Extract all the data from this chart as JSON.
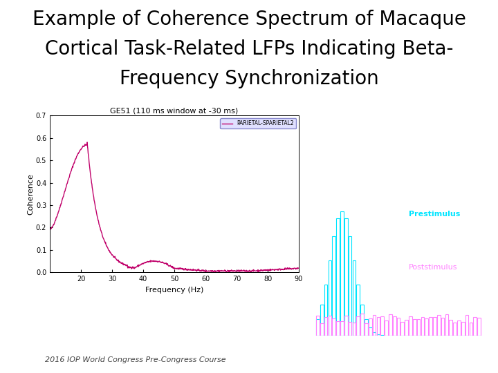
{
  "title_line1": "Example of Coherence Spectrum of Macaque",
  "title_line2": "Cortical Task-Related LFPs Indicating Beta-",
  "title_line3": "Frequency Synchronization",
  "title_fontsize": 20,
  "title_fontweight": "normal",
  "footer_text": "2016 IOP World Congress Pre-Congress Course",
  "footer_fontsize": 8,
  "plot_title": "GE51 (110 ms window at -30 ms)",
  "plot_title_fontsize": 8,
  "xlabel": "Frequency (Hz)",
  "ylabel": "Coherence",
  "xlim": [
    10,
    90
  ],
  "ylim": [
    0,
    0.7
  ],
  "yticks": [
    0,
    0.1,
    0.2,
    0.3,
    0.4,
    0.5,
    0.6,
    0.7
  ],
  "xticks": [
    20,
    30,
    40,
    50,
    60,
    70,
    80,
    90
  ],
  "line_color": "#c0006a",
  "legend_label": "PARIETAL-SPARIETAL2",
  "legend_facecolor": "#e0e0ff",
  "legend_edgecolor": "#8888cc",
  "bg_color": "#ffffff",
  "prestimulus_color": "#00e5ff",
  "poststimulus_color": "#ff80ff",
  "prestimulus_label": "Prestimulus",
  "poststimulus_label": "Poststimulus"
}
